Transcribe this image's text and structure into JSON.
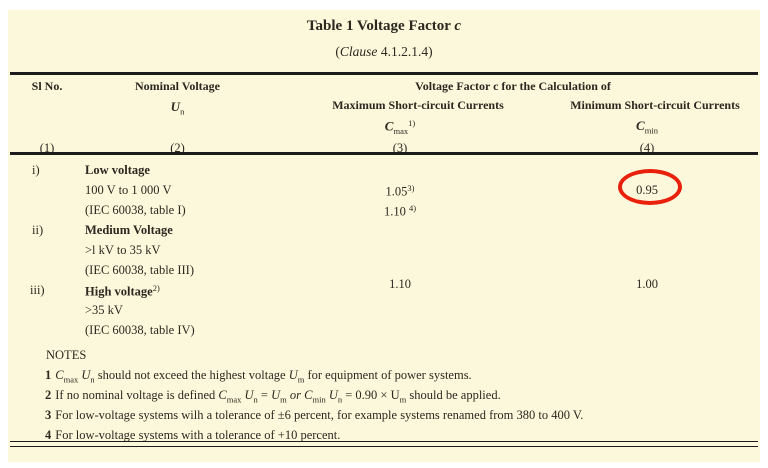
{
  "colors": {
    "page_bg": "#ffffff",
    "panel_bg": "#FCF8DB",
    "text": "#2b2820",
    "rule": "#1c1c1c",
    "highlight_circle": "#E8200C"
  },
  "title": {
    "runs": [
      {
        "t": "Table 1 Voltage Factor ",
        "s": "b"
      },
      {
        "t": "c",
        "s": "bi"
      }
    ]
  },
  "clause": {
    "runs": [
      {
        "t": "("
      },
      {
        "t": "Clause",
        "s": "i"
      },
      {
        "t": " 4.1.2.1.4)"
      }
    ]
  },
  "header": {
    "sl_no": "Sl No.",
    "nominal_voltage": "Nominal Voltage",
    "un_runs": [
      {
        "t": "U",
        "s": "bi"
      },
      {
        "t": "n",
        "s": "sub"
      }
    ],
    "group": "Voltage Factor c for the Calculation of",
    "max_col": "Maximum Short-circuit Currents",
    "min_col": "Minimum Short-circuit Currents",
    "cmax_runs": [
      {
        "t": "C",
        "s": "bi"
      },
      {
        "t": "max",
        "s": "sub"
      },
      {
        "t": "1)",
        "s": "sup"
      }
    ],
    "cmin_runs": [
      {
        "t": "C",
        "s": "bi"
      },
      {
        "t": "min",
        "s": "sub"
      }
    ],
    "col_nums": {
      "c1": "(1)",
      "c2": "(2)",
      "c3": "(3)",
      "c4": "(4)"
    }
  },
  "body": {
    "row_i": {
      "marker": "i)",
      "name_runs": [
        {
          "t": "Low voltage",
          "s": "b"
        }
      ],
      "line2": "100 V to 1 000 V",
      "line3": "(IEC 60038, table I)",
      "cmax_line2_runs": [
        {
          "t": "1.05"
        },
        {
          "t": "3)",
          "s": "sup"
        }
      ],
      "cmax_line3_runs": [
        {
          "t": "1.10 "
        },
        {
          "t": "4)",
          "s": "sup"
        }
      ],
      "cmin_value": "0.95"
    },
    "row_ii": {
      "marker": "ii)",
      "name_runs": [
        {
          "t": "Medium Voltage",
          "s": "b"
        }
      ],
      "line2": ">l kV to 35 kV",
      "line3": "(IEC 60038, table III)"
    },
    "row_iii": {
      "marker": "iii)",
      "name_runs": [
        {
          "t": "High voltage",
          "s": "b"
        },
        {
          "t": "2)",
          "s": "sup"
        }
      ],
      "line2": ">35 kV",
      "line3": "(IEC 60038, table IV)"
    },
    "merged": {
      "cmax": "1.10",
      "cmin": "1.00"
    }
  },
  "notes": {
    "heading": "NOTES",
    "items": [
      {
        "num": "1",
        "runs": [
          {
            "t": "C",
            "s": "i"
          },
          {
            "t": "max",
            "s": "sub"
          },
          {
            "t": " "
          },
          {
            "t": "U",
            "s": "i"
          },
          {
            "t": "n",
            "s": "sub"
          },
          {
            "t": " should not exceed the highest voltage "
          },
          {
            "t": "U",
            "s": "i"
          },
          {
            "t": "m",
            "s": "sub"
          },
          {
            "t": " for equipment of power systems."
          }
        ]
      },
      {
        "num": "2",
        "runs": [
          {
            "t": "If no nominal voltage is defined "
          },
          {
            "t": "C",
            "s": "i"
          },
          {
            "t": "max",
            "s": "sub"
          },
          {
            "t": " "
          },
          {
            "t": "U",
            "s": "i"
          },
          {
            "t": "n",
            "s": "sub"
          },
          {
            "t": " = "
          },
          {
            "t": "U",
            "s": "i"
          },
          {
            "t": "m",
            "s": "sub"
          },
          {
            "t": " "
          },
          {
            "t": "or",
            "s": "i"
          },
          {
            "t": " "
          },
          {
            "t": "C",
            "s": "i"
          },
          {
            "t": "min",
            "s": "sub"
          },
          {
            "t": " "
          },
          {
            "t": "U",
            "s": "i"
          },
          {
            "t": "n",
            "s": "sub"
          },
          {
            "t": " = 0.90 × U"
          },
          {
            "t": "m",
            "s": "sub"
          },
          {
            "t": " should be applied."
          }
        ]
      },
      {
        "num": "3",
        "runs": [
          {
            "t": "For low-voltage systems wilh a tolerance of ±6 percent, for example systems renamed from 380 to 400 V."
          }
        ]
      },
      {
        "num": "4",
        "runs": [
          {
            "t": "For low-voltage systems with a tolerance of +10 percent."
          }
        ]
      }
    ]
  }
}
